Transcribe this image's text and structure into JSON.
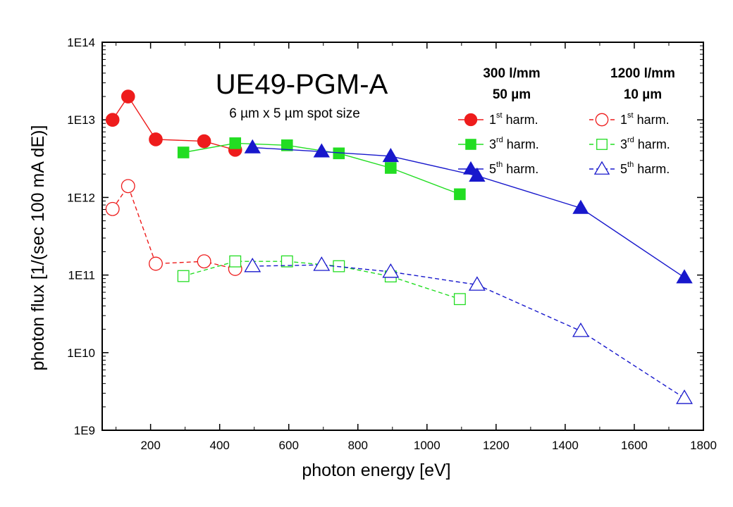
{
  "chart_data": {
    "type": "line",
    "title": "UE49-PGM-A",
    "subtitle": "6 µm x 5 µm spot size",
    "xlabel": "photon energy [eV]",
    "ylabel": "photon flux [1/(sec 100 mA dE)]",
    "xlim": [
      60,
      1800
    ],
    "ylim": [
      1000000000.0,
      100000000000000.0
    ],
    "yscale": "log",
    "xticks": [
      200,
      400,
      600,
      800,
      1000,
      1200,
      1400,
      1600,
      1800
    ],
    "xtick_labels": [
      "200",
      "400",
      "600",
      "800",
      "1000",
      "1200",
      "1400",
      "1600",
      "1800"
    ],
    "yticks": [
      1000000000.0,
      10000000000.0,
      100000000000.0,
      1000000000000.0,
      10000000000000.0,
      100000000000000.0
    ],
    "ytick_labels": [
      "1E9",
      "1E10",
      "1E11",
      "1E12",
      "1E13",
      "1E14"
    ],
    "legend_groups": [
      {
        "line1": "300 l/mm",
        "line2": "50 µm"
      },
      {
        "line1": "1200 l/mm",
        "line2": "10 µm"
      }
    ],
    "series": [
      {
        "name": "1st harm.",
        "legend_base": "1",
        "legend_sup": "st",
        "legend_suffix": " harm.",
        "group": 0,
        "color": "#ee1c1c",
        "marker": "circle",
        "filled": true,
        "dashed": false,
        "x": [
          90,
          135,
          215,
          355,
          445
        ],
        "y": [
          10000000000000.0,
          20000000000000.0,
          5600000000000.0,
          5300000000000.0,
          4100000000000.0
        ]
      },
      {
        "name": "3rd harm.",
        "legend_base": "3",
        "legend_sup": "rd",
        "legend_suffix": " harm.",
        "group": 0,
        "color": "#22dd22",
        "marker": "square",
        "filled": true,
        "dashed": false,
        "x": [
          295,
          445,
          595,
          745,
          895,
          1095
        ],
        "y": [
          3800000000000.0,
          5000000000000.0,
          4700000000000.0,
          3700000000000.0,
          2400000000000.0,
          1100000000000.0
        ]
      },
      {
        "name": "5th harm.",
        "legend_base": "5",
        "legend_sup": "th",
        "legend_suffix": " harm.",
        "group": 0,
        "color": "#1818cc",
        "marker": "triangle",
        "filled": true,
        "dashed": false,
        "x": [
          495,
          695,
          895,
          1145,
          1445,
          1745
        ],
        "y": [
          4400000000000.0,
          3900000000000.0,
          3400000000000.0,
          1900000000000.0,
          730000000000.0,
          93000000000.0
        ]
      },
      {
        "name": "1st harm.",
        "legend_base": "1",
        "legend_sup": "st",
        "legend_suffix": " harm.",
        "group": 1,
        "color": "#ee1c1c",
        "marker": "circle",
        "filled": false,
        "dashed": true,
        "x": [
          90,
          135,
          215,
          355,
          445
        ],
        "y": [
          710000000000.0,
          1400000000000.0,
          140000000000.0,
          150000000000.0,
          120000000000.0
        ]
      },
      {
        "name": "3rd harm.",
        "legend_base": "3",
        "legend_sup": "rd",
        "legend_suffix": " harm.",
        "group": 1,
        "color": "#22dd22",
        "marker": "square",
        "filled": false,
        "dashed": true,
        "x": [
          295,
          445,
          595,
          745,
          895,
          1095
        ],
        "y": [
          97000000000.0,
          150000000000.0,
          150000000000.0,
          130000000000.0,
          96000000000.0,
          49000000000.0
        ]
      },
      {
        "name": "5th harm.",
        "legend_base": "5",
        "legend_sup": "th",
        "legend_suffix": " harm.",
        "group": 1,
        "color": "#1818cc",
        "marker": "triangle",
        "filled": false,
        "dashed": true,
        "x": [
          495,
          695,
          895,
          1145,
          1445,
          1745
        ],
        "y": [
          130000000000.0,
          135000000000.0,
          110000000000.0,
          75000000000.0,
          19000000000.0,
          2600000000.0
        ]
      }
    ]
  }
}
